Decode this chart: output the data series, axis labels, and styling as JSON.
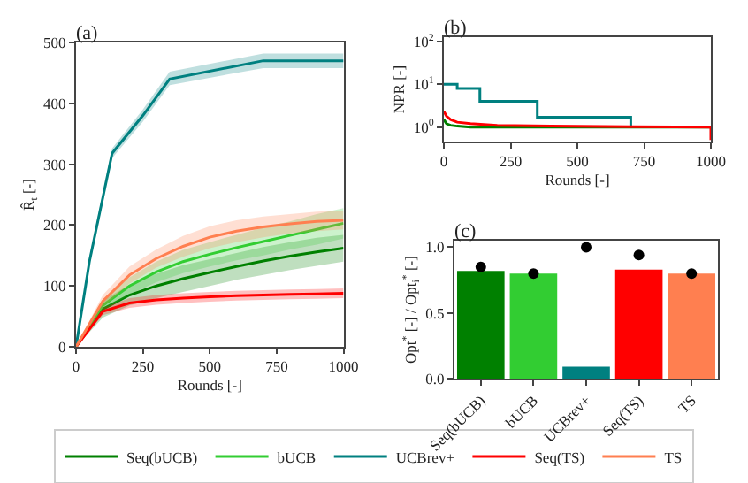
{
  "chart_data": [
    {
      "type": "line",
      "title": "(a)",
      "xlabel": "Rounds [-]",
      "ylabel": "R̂$_{t}$ [-]",
      "x": [
        0,
        100,
        200,
        300,
        400,
        500,
        600,
        700,
        800,
        900,
        1000
      ],
      "xlim": [
        0,
        1000
      ],
      "xticks": [
        0,
        250,
        500,
        750,
        1000
      ],
      "ylim": [
        0,
        500
      ],
      "yticks": [
        0,
        100,
        200,
        300,
        400,
        500
      ],
      "grid": false,
      "legend": "bottom",
      "series": [
        {
          "name": "Seq(bUCB)",
          "color": "#008000",
          "values": [
            0,
            62,
            85,
            100,
            112,
            122,
            132,
            141,
            149,
            156,
            162
          ],
          "lower": [
            0,
            48,
            68,
            80,
            90,
            100,
            110,
            118,
            126,
            133,
            140
          ],
          "upper": [
            0,
            76,
            102,
            120,
            134,
            144,
            154,
            164,
            172,
            179,
            184
          ]
        },
        {
          "name": "bUCB",
          "color": "#32cd32",
          "values": [
            0,
            68,
            100,
            123,
            140,
            152,
            163,
            173,
            183,
            193,
            203
          ],
          "lower": [
            0,
            58,
            86,
            106,
            121,
            132,
            142,
            150,
            160,
            168,
            178
          ],
          "upper": [
            0,
            78,
            114,
            140,
            159,
            172,
            184,
            196,
            206,
            218,
            228
          ]
        },
        {
          "name": "UCBrev+",
          "color": "#008080",
          "x": [
            0,
            50,
            135,
            250,
            350,
            700,
            1000
          ],
          "values": [
            0,
            140,
            318,
            380,
            440,
            470,
            470
          ],
          "lower": [
            0,
            132,
            310,
            370,
            430,
            458,
            458
          ],
          "upper": [
            0,
            148,
            326,
            390,
            452,
            482,
            482
          ]
        },
        {
          "name": "Seq(TS)",
          "color": "#ff0000",
          "values": [
            0,
            58,
            72,
            77,
            80,
            82,
            84,
            85,
            86,
            87,
            88
          ],
          "lower": [
            0,
            52,
            64,
            69,
            72,
            74,
            76,
            77,
            78,
            79,
            80
          ],
          "upper": [
            0,
            64,
            80,
            85,
            88,
            90,
            92,
            93,
            94,
            95,
            96
          ]
        },
        {
          "name": "TS",
          "color": "#ff7f50",
          "values": [
            0,
            75,
            118,
            145,
            165,
            180,
            190,
            197,
            202,
            206,
            208
          ],
          "lower": [
            0,
            65,
            104,
            130,
            148,
            162,
            172,
            180,
            186,
            190,
            193
          ],
          "upper": [
            0,
            85,
            132,
            160,
            182,
            198,
            208,
            214,
            218,
            222,
            224
          ]
        }
      ]
    },
    {
      "type": "line",
      "title": "(b)",
      "xlabel": "Rounds [-]",
      "ylabel": "NPR [-]",
      "log": "y",
      "xlim": [
        0,
        1000
      ],
      "xticks": [
        0,
        250,
        500,
        750,
        1000
      ],
      "ylim": [
        0.46,
        125
      ],
      "yticks": [
        {
          "value": 1,
          "label": "10$^{0}$"
        },
        {
          "value": 10,
          "label": "10$^{1}$"
        },
        {
          "value": 100,
          "label": "10$^{2}$"
        }
      ],
      "grid": false,
      "legend": false,
      "series": [
        {
          "type": "step",
          "color": "#008080",
          "x": [
            0,
            50,
            135,
            350,
            700
          ],
          "values": [
            10,
            8,
            4,
            1.7,
            1
          ]
        },
        {
          "color": "#008000",
          "x": [
            0,
            10,
            25,
            50,
            100,
            200,
            400,
            1000
          ],
          "values": [
            1.5,
            1.2,
            1.1,
            1.05,
            1,
            1,
            1,
            1
          ]
        },
        {
          "color": "#ff0000",
          "x": [
            0,
            10,
            25,
            50,
            100,
            200,
            400,
            700,
            1000,
            1000
          ],
          "values": [
            2.3,
            1.8,
            1.5,
            1.3,
            1.2,
            1.1,
            1.05,
            1.02,
            1,
            0.5
          ]
        }
      ]
    },
    {
      "type": "bar",
      "title": "(c)",
      "ylabel": "Opt$^{*}$ [-] / Opt$_{i}$$^{*}$ [-]",
      "categories": [
        "Seq(bUCB)",
        "bUCB",
        "UCBrev+",
        "Seq(TS)",
        "TS"
      ],
      "ylim": [
        0,
        1.05
      ],
      "yticks": [
        {
          "value": 0,
          "label": "0.0"
        },
        0.5,
        {
          "value": 1,
          "label": "1.0"
        }
      ],
      "grid": false,
      "legend": false,
      "series": [
        {
          "colors": [
            "#008000",
            "#32cd32",
            "#008080",
            "#ff0000",
            "#ff7f50"
          ],
          "values": [
            0.82,
            0.8,
            0.09,
            0.83,
            0.8
          ]
        },
        {
          "type": "scatter",
          "marker": "circle",
          "color": "#000000",
          "x": [
            "Seq(bUCB)",
            "bUCB",
            "UCBrev+",
            "Seq(TS)",
            "TS"
          ],
          "values": [
            0.85,
            0.8,
            1.0,
            0.94,
            0.8
          ]
        }
      ]
    }
  ]
}
